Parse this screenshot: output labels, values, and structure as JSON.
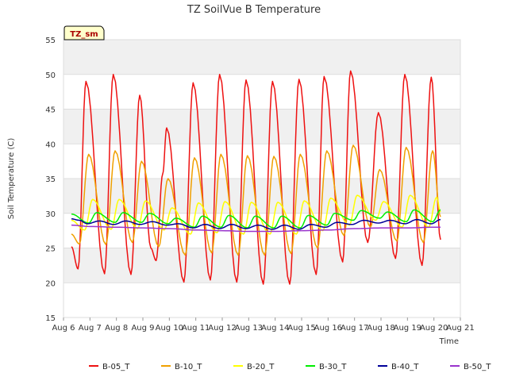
{
  "chart_data": {
    "type": "line",
    "title": "TZ SoilVue B Temperature",
    "xlabel": "Time",
    "ylabel": "Soil Temperature (C)",
    "badge": "TZ_sm",
    "ylim": [
      15,
      55
    ],
    "yticks": [
      15,
      20,
      25,
      30,
      35,
      40,
      45,
      50,
      55
    ],
    "xlim": [
      6,
      21
    ],
    "xticks": [
      {
        "day": 6,
        "label": "Aug 6"
      },
      {
        "day": 7,
        "label": "Aug 7"
      },
      {
        "day": 8,
        "label": "Aug 8"
      },
      {
        "day": 9,
        "label": "Aug 9"
      },
      {
        "day": 10,
        "label": "Aug 10"
      },
      {
        "day": 11,
        "label": "Aug 11"
      },
      {
        "day": 12,
        "label": "Aug 12"
      },
      {
        "day": 13,
        "label": "Aug 13"
      },
      {
        "day": 14,
        "label": "Aug 14"
      },
      {
        "day": 15,
        "label": "Aug 15"
      },
      {
        "day": 16,
        "label": "Aug 16"
      },
      {
        "day": 17,
        "label": "Aug 17"
      },
      {
        "day": 18,
        "label": "Aug 18"
      },
      {
        "day": 19,
        "label": "Aug 19"
      },
      {
        "day": 20,
        "label": "Aug 20"
      },
      {
        "day": 21,
        "label": "Aug 21"
      }
    ],
    "grid": true,
    "legend_position": "bottom",
    "series": [
      {
        "name": "B-05_T",
        "color": "#ee1111",
        "width": 1.5,
        "points": [
          [
            6.3,
            25.2
          ],
          [
            6.55,
            22.0
          ],
          [
            6.85,
            49.0
          ],
          [
            7.55,
            21.3
          ],
          [
            7.88,
            50.0
          ],
          [
            8.55,
            21.2
          ],
          [
            8.88,
            47.0
          ],
          [
            9.3,
            25.0
          ],
          [
            9.5,
            23.2
          ],
          [
            9.75,
            35.7
          ],
          [
            9.9,
            42.3
          ],
          [
            10.55,
            20.1
          ],
          [
            10.9,
            48.8
          ],
          [
            11.55,
            20.4
          ],
          [
            11.9,
            50.0
          ],
          [
            12.55,
            20.1
          ],
          [
            12.9,
            49.2
          ],
          [
            13.55,
            19.8
          ],
          [
            13.9,
            49.0
          ],
          [
            14.55,
            19.8
          ],
          [
            14.9,
            49.3
          ],
          [
            15.55,
            21.2
          ],
          [
            15.85,
            49.7
          ],
          [
            16.55,
            23.0
          ],
          [
            16.85,
            50.5
          ],
          [
            17.5,
            25.8
          ],
          [
            17.9,
            44.5
          ],
          [
            18.55,
            23.5
          ],
          [
            18.9,
            50.0
          ],
          [
            19.55,
            22.5
          ],
          [
            19.9,
            49.6
          ],
          [
            20.25,
            26.2
          ]
        ]
      },
      {
        "name": "B-10_T",
        "color": "#f0a000",
        "width": 1.5,
        "points": [
          [
            6.3,
            27.0
          ],
          [
            6.6,
            25.6
          ],
          [
            6.95,
            38.5
          ],
          [
            7.6,
            25.5
          ],
          [
            7.95,
            39.0
          ],
          [
            8.6,
            25.8
          ],
          [
            8.95,
            37.5
          ],
          [
            9.6,
            25.2
          ],
          [
            9.95,
            35.0
          ],
          [
            10.6,
            24.0
          ],
          [
            10.95,
            38.0
          ],
          [
            11.6,
            24.3
          ],
          [
            11.95,
            38.5
          ],
          [
            12.6,
            24.0
          ],
          [
            12.95,
            38.3
          ],
          [
            13.6,
            24.0
          ],
          [
            13.95,
            38.2
          ],
          [
            14.6,
            24.2
          ],
          [
            14.95,
            38.5
          ],
          [
            15.6,
            25.0
          ],
          [
            15.95,
            39.0
          ],
          [
            16.6,
            26.8
          ],
          [
            16.95,
            39.8
          ],
          [
            17.6,
            28.0
          ],
          [
            17.95,
            36.3
          ],
          [
            18.6,
            26.0
          ],
          [
            18.95,
            39.5
          ],
          [
            19.6,
            25.8
          ],
          [
            19.95,
            39.0
          ],
          [
            20.25,
            29.5
          ]
        ]
      },
      {
        "name": "B-20_T",
        "color": "#ffff00",
        "width": 1.5,
        "points": [
          [
            6.3,
            29.0
          ],
          [
            6.8,
            27.6
          ],
          [
            7.1,
            32.0
          ],
          [
            7.8,
            27.7
          ],
          [
            8.1,
            32.0
          ],
          [
            8.8,
            27.8
          ],
          [
            9.1,
            31.8
          ],
          [
            9.8,
            27.6
          ],
          [
            10.1,
            30.8
          ],
          [
            10.8,
            27.0
          ],
          [
            11.1,
            31.5
          ],
          [
            11.8,
            27.2
          ],
          [
            12.1,
            31.7
          ],
          [
            12.8,
            27.0
          ],
          [
            13.1,
            31.6
          ],
          [
            13.8,
            27.0
          ],
          [
            14.1,
            31.6
          ],
          [
            14.8,
            27.0
          ],
          [
            15.1,
            31.8
          ],
          [
            15.8,
            27.5
          ],
          [
            16.1,
            32.2
          ],
          [
            16.8,
            28.3
          ],
          [
            17.1,
            32.6
          ],
          [
            17.8,
            29.0
          ],
          [
            18.1,
            31.7
          ],
          [
            18.8,
            28.0
          ],
          [
            19.1,
            32.6
          ],
          [
            19.8,
            28.0
          ],
          [
            20.1,
            32.3
          ],
          [
            20.25,
            30.2
          ]
        ]
      },
      {
        "name": "B-30_T",
        "color": "#00ee00",
        "width": 1.5,
        "points": [
          [
            6.3,
            29.9
          ],
          [
            6.95,
            28.6
          ],
          [
            7.25,
            30.1
          ],
          [
            7.95,
            28.7
          ],
          [
            8.25,
            30.1
          ],
          [
            8.95,
            28.7
          ],
          [
            9.25,
            30.0
          ],
          [
            9.95,
            28.5
          ],
          [
            10.25,
            29.3
          ],
          [
            10.95,
            28.0
          ],
          [
            11.25,
            29.6
          ],
          [
            11.95,
            28.0
          ],
          [
            12.25,
            29.7
          ],
          [
            12.95,
            27.9
          ],
          [
            13.25,
            29.6
          ],
          [
            13.95,
            27.9
          ],
          [
            14.25,
            29.6
          ],
          [
            14.95,
            27.9
          ],
          [
            15.25,
            29.7
          ],
          [
            15.95,
            28.3
          ],
          [
            16.25,
            30.0
          ],
          [
            16.95,
            29.0
          ],
          [
            17.25,
            30.4
          ],
          [
            17.95,
            29.3
          ],
          [
            18.25,
            30.2
          ],
          [
            18.95,
            28.8
          ],
          [
            19.25,
            30.5
          ],
          [
            19.95,
            28.8
          ],
          [
            20.25,
            30.5
          ]
        ]
      },
      {
        "name": "B-40_T",
        "color": "#000099",
        "width": 1.5,
        "points": [
          [
            6.3,
            29.2
          ],
          [
            6.6,
            29.0
          ],
          [
            6.9,
            28.5
          ],
          [
            7.35,
            28.9
          ],
          [
            7.9,
            28.4
          ],
          [
            8.35,
            28.9
          ],
          [
            8.9,
            28.4
          ],
          [
            9.35,
            28.8
          ],
          [
            9.9,
            28.3
          ],
          [
            10.35,
            28.5
          ],
          [
            10.9,
            27.9
          ],
          [
            11.35,
            28.4
          ],
          [
            11.9,
            27.8
          ],
          [
            12.35,
            28.4
          ],
          [
            12.9,
            27.8
          ],
          [
            13.35,
            28.3
          ],
          [
            13.9,
            27.7
          ],
          [
            14.35,
            28.3
          ],
          [
            14.9,
            27.7
          ],
          [
            15.35,
            28.4
          ],
          [
            15.9,
            28.0
          ],
          [
            16.35,
            28.7
          ],
          [
            16.9,
            28.4
          ],
          [
            17.35,
            29.0
          ],
          [
            17.9,
            28.6
          ],
          [
            18.35,
            29.0
          ],
          [
            18.9,
            28.5
          ],
          [
            19.35,
            29.1
          ],
          [
            19.9,
            28.5
          ],
          [
            20.25,
            29.1
          ]
        ]
      },
      {
        "name": "B-50_T",
        "color": "#9933cc",
        "width": 1.5,
        "points": [
          [
            6.3,
            28.3
          ],
          [
            7.0,
            28.1
          ],
          [
            8.0,
            28.0
          ],
          [
            9.0,
            27.9
          ],
          [
            10.0,
            27.8
          ],
          [
            11.0,
            27.6
          ],
          [
            12.0,
            27.5
          ],
          [
            13.0,
            27.4
          ],
          [
            14.0,
            27.4
          ],
          [
            15.0,
            27.5
          ],
          [
            16.0,
            27.6
          ],
          [
            17.0,
            27.8
          ],
          [
            18.0,
            27.9
          ],
          [
            19.0,
            27.9
          ],
          [
            20.0,
            28.0
          ],
          [
            20.25,
            28.0
          ]
        ]
      }
    ]
  }
}
